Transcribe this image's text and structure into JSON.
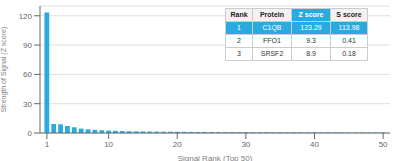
{
  "chart_data": {
    "type": "bar",
    "xlabel": "Signal Rank (Top 50)",
    "ylabel": "Strength of Signal (Z score)",
    "x": [
      1,
      2,
      3,
      4,
      5,
      6,
      7,
      8,
      9,
      10,
      11,
      12,
      13,
      14,
      15,
      16,
      17,
      18,
      19,
      20,
      21,
      22,
      23,
      24,
      25,
      26,
      27,
      28,
      29,
      30,
      31,
      32,
      33,
      34,
      35,
      36,
      37,
      38,
      39,
      40,
      41,
      42,
      43,
      44,
      45,
      46,
      47,
      48,
      49,
      50
    ],
    "values": [
      123.29,
      9.3,
      8.9,
      7.2,
      5.8,
      4.5,
      3.8,
      3.2,
      2.8,
      2.5,
      2.2,
      2.0,
      1.85,
      1.7,
      1.6,
      1.5,
      1.4,
      1.35,
      1.28,
      1.22,
      1.16,
      1.1,
      1.05,
      1.0,
      0.96,
      0.92,
      0.88,
      0.85,
      0.82,
      0.79,
      0.76,
      0.73,
      0.71,
      0.68,
      0.66,
      0.64,
      0.62,
      0.6,
      0.58,
      0.56,
      0.54,
      0.52,
      0.5,
      0.49,
      0.47,
      0.45,
      0.44,
      0.42,
      0.41,
      0.39
    ],
    "color": "#29ABE2",
    "xlim": [
      0.0,
      51
    ],
    "xticks": [
      1,
      10,
      20,
      30,
      40,
      50
    ],
    "ylim": [
      0,
      130
    ],
    "yticks": [
      0,
      30,
      60,
      90,
      120
    ],
    "grid": true,
    "table": [
      [
        "Rank",
        "Protein",
        "Z score",
        "S score"
      ],
      [
        "1",
        "C1QB",
        "123.29",
        "113.98"
      ],
      [
        "2",
        "FFO1",
        "9.3",
        "0.41"
      ],
      [
        "3",
        "SRSF2",
        "8.9",
        "0.18"
      ]
    ]
  }
}
